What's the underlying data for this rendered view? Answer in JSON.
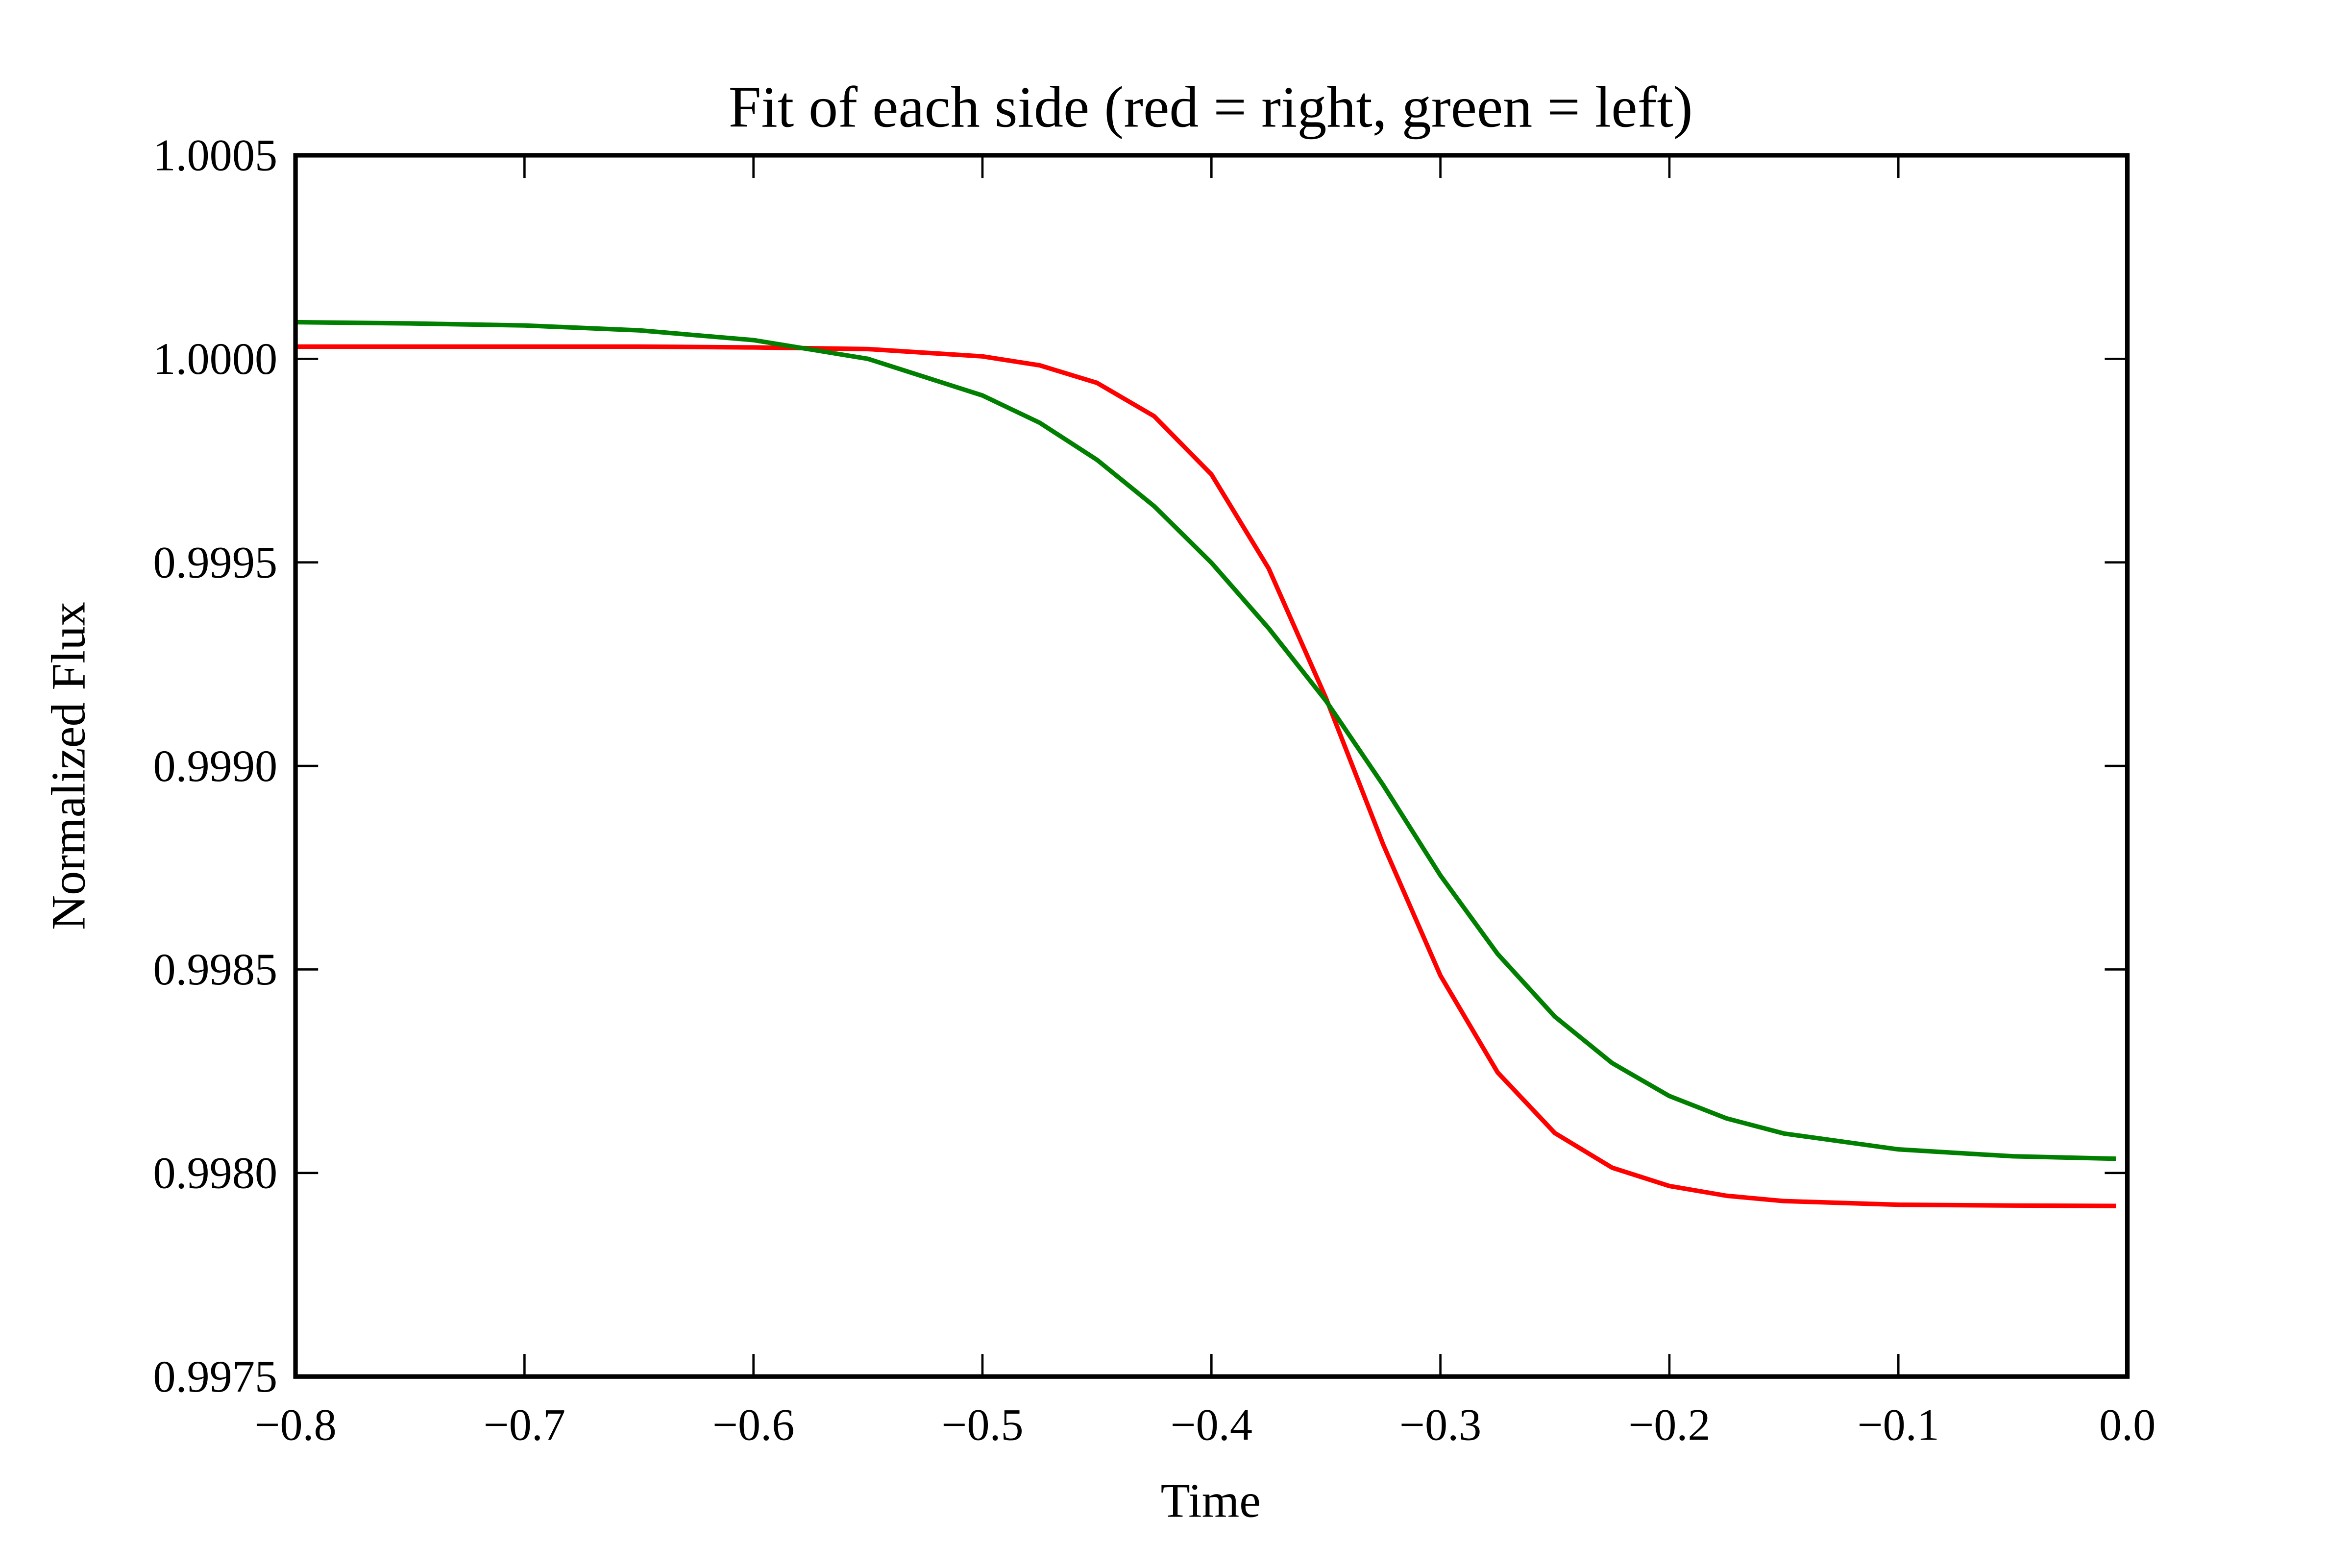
{
  "chart_data": {
    "type": "line",
    "title": "Fit of each side (red = right, green = left)",
    "xlabel": "Time",
    "ylabel": "Normalized Flux",
    "x": [
      -0.8,
      -0.75,
      -0.7,
      -0.65,
      -0.6,
      -0.55,
      -0.5,
      -0.475,
      -0.45,
      -0.425,
      -0.4,
      -0.375,
      -0.35,
      -0.325,
      -0.3,
      -0.275,
      -0.25,
      -0.225,
      -0.2,
      -0.175,
      -0.15,
      -0.1,
      -0.05,
      -0.005
    ],
    "series": [
      {
        "color": "#ff0000",
        "values": [
          1.00003,
          1.00003,
          1.00003,
          1.00003,
          1.000028,
          1.000024,
          1.000006,
          0.999984,
          0.999941,
          0.999859,
          0.999716,
          0.999485,
          0.999167,
          0.998807,
          0.998485,
          0.998247,
          0.998098,
          0.998013,
          0.997968,
          0.997944,
          0.997931,
          0.997922,
          0.99792,
          0.997919
        ]
      },
      {
        "color": "#007f00",
        "values": [
          1.00009,
          1.000087,
          1.000082,
          1.00007,
          1.000046,
          1.0,
          0.99991,
          0.999843,
          0.999752,
          0.999638,
          0.999499,
          0.999338,
          0.99916,
          0.998953,
          0.998731,
          0.998538,
          0.998384,
          0.99827,
          0.998189,
          0.998134,
          0.998097,
          0.998058,
          0.998041,
          0.998035
        ]
      }
    ],
    "xlim": [
      -0.8,
      0.0
    ],
    "ylim": [
      0.9975,
      1.0005
    ],
    "xticks": [
      {
        "value": -0.8,
        "label": "−0.8"
      },
      {
        "value": -0.7,
        "label": "−0.7"
      },
      {
        "value": -0.6,
        "label": "−0.6"
      },
      {
        "value": -0.5,
        "label": "−0.5"
      },
      {
        "value": -0.4,
        "label": "−0.4"
      },
      {
        "value": -0.3,
        "label": "−0.3"
      },
      {
        "value": -0.2,
        "label": "−0.2"
      },
      {
        "value": -0.1,
        "label": "−0.1"
      },
      {
        "value": 0,
        "label": "0.0"
      }
    ],
    "yticks": [
      0.9975,
      {
        "value": 0.998,
        "label": "0.9980"
      },
      0.9985,
      {
        "value": 0.999,
        "label": "0.9990"
      },
      0.9995,
      {
        "value": 1,
        "label": "1.0000"
      },
      1.0005
    ],
    "grid": false
  }
}
